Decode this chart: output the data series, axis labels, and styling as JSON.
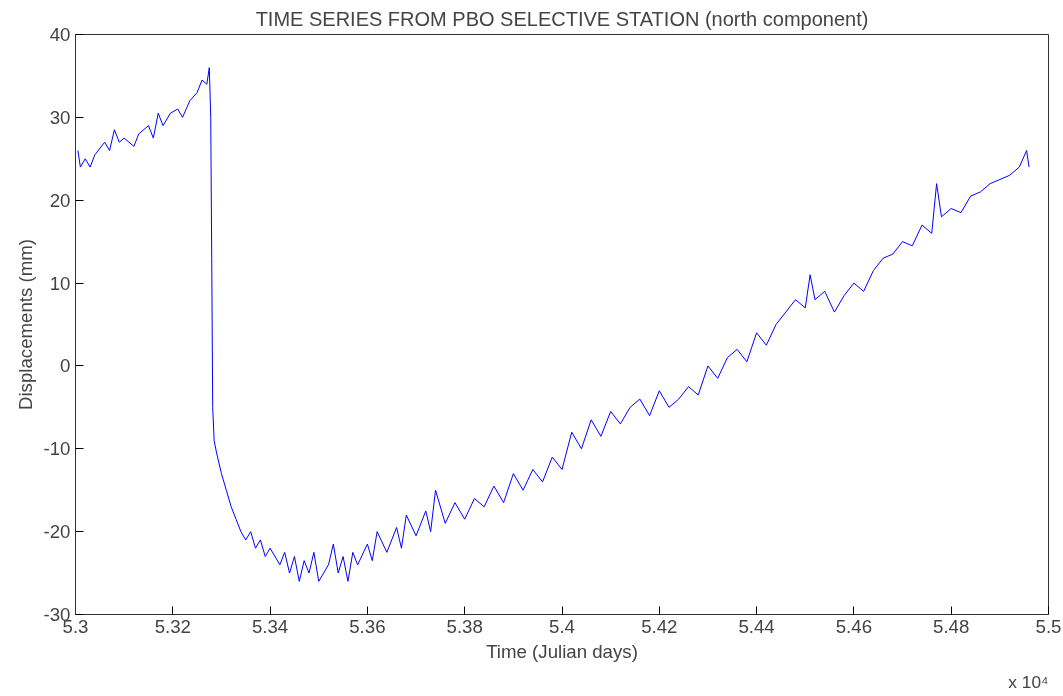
{
  "chart_data": {
    "type": "line",
    "title": "TIME SERIES FROM PBO SELECTIVE STATION (north component)",
    "xlabel": "Time (Julian days)",
    "ylabel": "Displacements (mm)",
    "annotations": [
      "x 10⁴"
    ],
    "x": [
      5.3005,
      5.301,
      5.302,
      5.303,
      5.304,
      5.306,
      5.307,
      5.308,
      5.309,
      5.31,
      5.312,
      5.313,
      5.315,
      5.316,
      5.317,
      5.318,
      5.3195,
      5.321,
      5.322,
      5.3235,
      5.325,
      5.326,
      5.327,
      5.3275,
      5.3278,
      5.328,
      5.3282,
      5.3285,
      5.329,
      5.33,
      5.331,
      5.332,
      5.333,
      5.334,
      5.335,
      5.336,
      5.337,
      5.338,
      5.339,
      5.34,
      5.342,
      5.343,
      5.344,
      5.345,
      5.346,
      5.347,
      5.348,
      5.349,
      5.35,
      5.352,
      5.353,
      5.354,
      5.355,
      5.356,
      5.357,
      5.358,
      5.36,
      5.361,
      5.362,
      5.364,
      5.366,
      5.367,
      5.368,
      5.37,
      5.372,
      5.373,
      5.374,
      5.376,
      5.378,
      5.38,
      5.382,
      5.384,
      5.386,
      5.388,
      5.39,
      5.392,
      5.394,
      5.396,
      5.398,
      5.4,
      5.402,
      5.404,
      5.406,
      5.408,
      5.41,
      5.412,
      5.414,
      5.416,
      5.418,
      5.42,
      5.422,
      5.424,
      5.426,
      5.428,
      5.43,
      5.432,
      5.434,
      5.436,
      5.438,
      5.44,
      5.442,
      5.444,
      5.446,
      5.448,
      5.45,
      5.451,
      5.452,
      5.454,
      5.456,
      5.458,
      5.46,
      5.462,
      5.464,
      5.466,
      5.468,
      5.47,
      5.472,
      5.474,
      5.476,
      5.477,
      5.478,
      5.48,
      5.482,
      5.484,
      5.486,
      5.488,
      5.49,
      5.492,
      5.494,
      5.4955,
      5.496
    ],
    "series": [
      {
        "color": "#0000ff",
        "values": [
          26,
          24,
          25,
          24,
          25.5,
          27,
          26,
          28.5,
          27,
          27.5,
          26.5,
          28,
          29,
          27.5,
          30.5,
          29,
          30.5,
          31,
          30,
          32,
          33,
          34.5,
          34,
          36,
          30,
          13,
          -5,
          -9,
          -10.5,
          -13,
          -15,
          -17,
          -18.5,
          -20,
          -21,
          -20,
          -22,
          -21,
          -23,
          -22,
          -24,
          -22.5,
          -25,
          -23,
          -26,
          -23.5,
          -25,
          -22.5,
          -26,
          -24,
          -21.5,
          -25,
          -23,
          -26,
          -22.5,
          -24,
          -21.5,
          -23.5,
          -20,
          -22.5,
          -19.5,
          -22,
          -18,
          -20.5,
          -17.5,
          -20,
          -15,
          -19,
          -16.5,
          -18.5,
          -16,
          -17,
          -14.5,
          -16.5,
          -13,
          -15,
          -12.5,
          -14,
          -11,
          -12.5,
          -8,
          -10,
          -6.5,
          -8.5,
          -5.5,
          -7,
          -5,
          -4,
          -6,
          -3,
          -5,
          -4,
          -2.5,
          -3.5,
          0,
          -1.5,
          1,
          2,
          0.5,
          4,
          2.5,
          5,
          6.5,
          8,
          7,
          11,
          8,
          9,
          6.5,
          8.5,
          10,
          9,
          11.5,
          13,
          13.5,
          15,
          14.5,
          17,
          16,
          22,
          18,
          19,
          18.5,
          20.5,
          21,
          22,
          22.5,
          23,
          24,
          26,
          24
        ]
      }
    ],
    "xlim": [
      5.3,
      5.5
    ],
    "ylim": [
      -30,
      40
    ],
    "xticks": [
      5.3,
      5.32,
      5.34,
      5.36,
      5.38,
      5.4,
      5.42,
      5.44,
      5.46,
      5.48,
      5.5
    ],
    "yticks": [
      -30,
      -20,
      -10,
      0,
      10,
      20,
      30,
      40
    ],
    "grid": false
  }
}
